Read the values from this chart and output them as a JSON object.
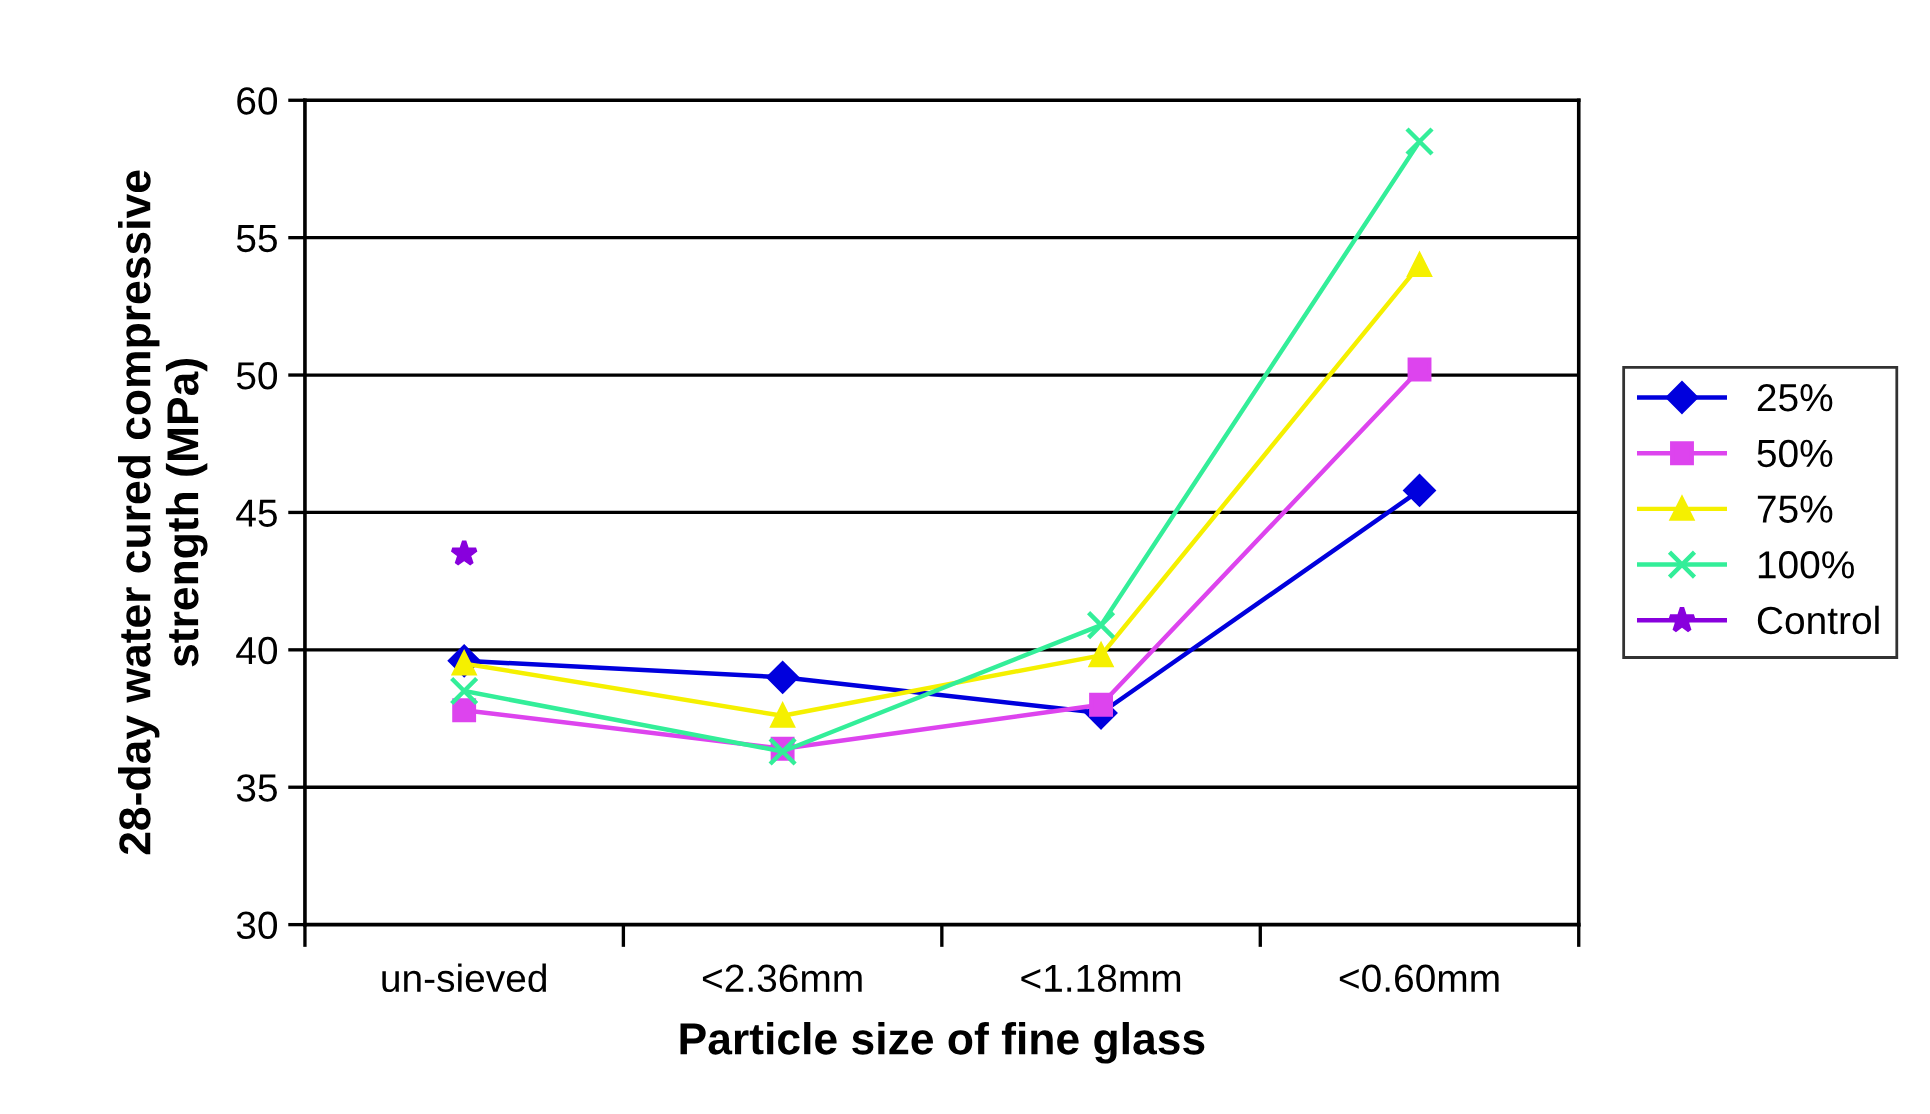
{
  "chart_data": {
    "type": "line",
    "xlabel": "Particle size of fine glass",
    "ylabel": "28-day water cured compressive\nstrength (MPa)",
    "categories": [
      "un-sieved",
      "<2.36mm",
      "<1.18mm",
      "<0.60mm"
    ],
    "series": [
      {
        "name": "25%",
        "color": "#0000dd",
        "marker": "diamond",
        "values": [
          39.6,
          39.0,
          37.7,
          45.8
        ]
      },
      {
        "name": "50%",
        "color": "#dd44ee",
        "marker": "square",
        "values": [
          37.8,
          36.4,
          38.0,
          50.2
        ]
      },
      {
        "name": "75%",
        "color": "#f5f000",
        "marker": "triangle",
        "values": [
          39.5,
          37.6,
          39.8,
          54.0
        ]
      },
      {
        "name": "100%",
        "color": "#33ee99",
        "marker": "cross",
        "values": [
          38.5,
          36.3,
          40.9,
          58.5
        ]
      },
      {
        "name": "Control",
        "color": "#8800dd",
        "marker": "star",
        "values": [
          43.5,
          null,
          null,
          null
        ]
      }
    ],
    "ylim": [
      30,
      60
    ],
    "yticks": [
      30,
      35,
      40,
      45,
      50,
      55,
      60
    ],
    "grid": "y",
    "legend": "right",
    "line_style": "solid"
  }
}
